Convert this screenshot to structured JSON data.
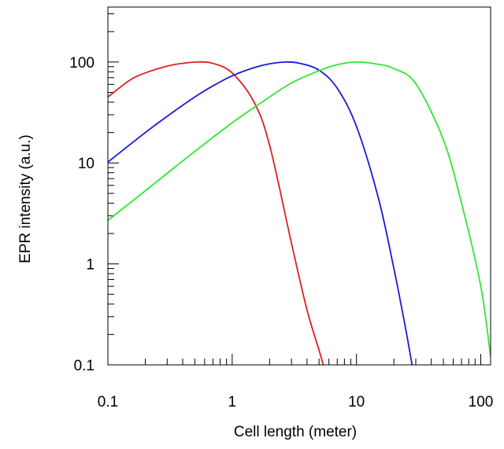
{
  "chart_data": {
    "type": "line",
    "title": "",
    "xlabel": "Cell length (meter)",
    "ylabel": "EPR intensity (a.u.)",
    "x_scale": "log",
    "y_scale": "log",
    "xlim": [
      0.1,
      120
    ],
    "ylim": [
      0.1,
      350
    ],
    "x_ticks": [
      {
        "value": 0.1,
        "label": "0.1"
      },
      {
        "value": 1,
        "label": "1"
      },
      {
        "value": 10,
        "label": "10"
      },
      {
        "value": 100,
        "label": "100"
      }
    ],
    "y_ticks": [
      {
        "value": 0.1,
        "label": "0.1"
      },
      {
        "value": 1,
        "label": "1"
      },
      {
        "value": 10,
        "label": "10"
      },
      {
        "value": 100,
        "label": "100"
      }
    ],
    "grid": false,
    "legend": "none",
    "series": [
      {
        "color": "#e02020",
        "x": [
          0.1,
          0.15,
          0.2,
          0.3,
          0.4,
          0.53,
          0.7,
          1,
          1.5,
          2,
          3,
          4,
          5,
          5.4
        ],
        "y": [
          45,
          66,
          78,
          91,
          97,
          100,
          97,
          78,
          40,
          15,
          1.6,
          0.35,
          0.14,
          0.1
        ]
      },
      {
        "color": "#1a1ad6",
        "x": [
          0.1,
          0.2,
          0.3,
          0.5,
          0.7,
          1,
          1.5,
          2,
          2.7,
          3.5,
          5,
          7,
          10,
          15,
          20,
          25,
          28
        ],
        "y": [
          10.2,
          20,
          29,
          45,
          58,
          73,
          88,
          96,
          100,
          97,
          83,
          55,
          23,
          4.5,
          0.9,
          0.22,
          0.1
        ]
      },
      {
        "color": "#33e633",
        "x": [
          0.1,
          0.2,
          0.3,
          0.5,
          1,
          2,
          3,
          5,
          7,
          10,
          15,
          20,
          30,
          50,
          70,
          100,
          120
        ],
        "y": [
          2.7,
          5.3,
          7.9,
          13,
          25,
          45,
          62,
          82,
          94,
          100,
          95,
          86,
          61,
          17,
          4,
          0.6,
          0.12
        ]
      }
    ]
  }
}
